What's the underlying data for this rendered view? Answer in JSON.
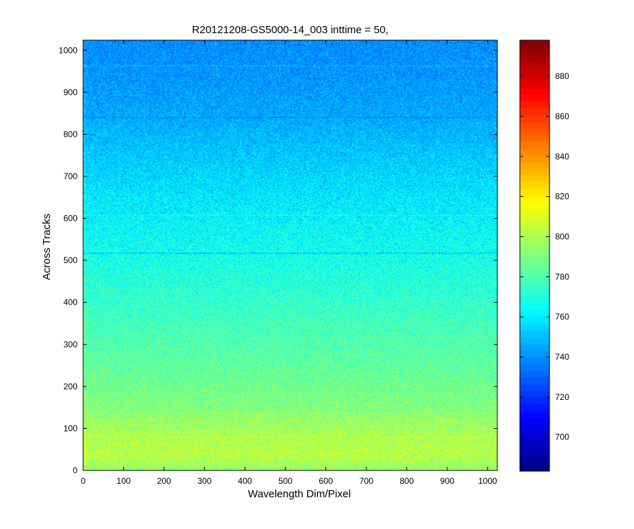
{
  "chart_data": {
    "type": "heatmap",
    "title": "R20121208-GS5000-14_003 inttime = 50,",
    "xlabel": "Wavelength Dim/Pixel",
    "ylabel": "Across Tracks",
    "xlim": [
      0,
      1024
    ],
    "ylim": [
      0,
      1024
    ],
    "x_ticks": [
      0,
      100,
      200,
      300,
      400,
      500,
      600,
      700,
      800,
      900,
      1000
    ],
    "y_ticks": [
      0,
      100,
      200,
      300,
      400,
      500,
      600,
      700,
      800,
      900,
      1000
    ],
    "colormap": "jet",
    "colorbar": {
      "min": 683,
      "max": 898,
      "ticks": [
        700,
        720,
        740,
        760,
        780,
        800,
        820,
        840,
        860,
        880
      ]
    },
    "grid": false,
    "row_mean_profile": {
      "rows": [
        0,
        40,
        80,
        150,
        250,
        350,
        450,
        550,
        650,
        750,
        850,
        950,
        1024
      ],
      "values": [
        795,
        803,
        800,
        791,
        784,
        778,
        771,
        765,
        759,
        752,
        745,
        741,
        740
      ]
    },
    "noise_amplitude": 14,
    "bright_lines_rows": [
      963,
      607,
      135,
      120,
      80
    ],
    "dark_lines_rows": [
      840,
      517
    ]
  }
}
